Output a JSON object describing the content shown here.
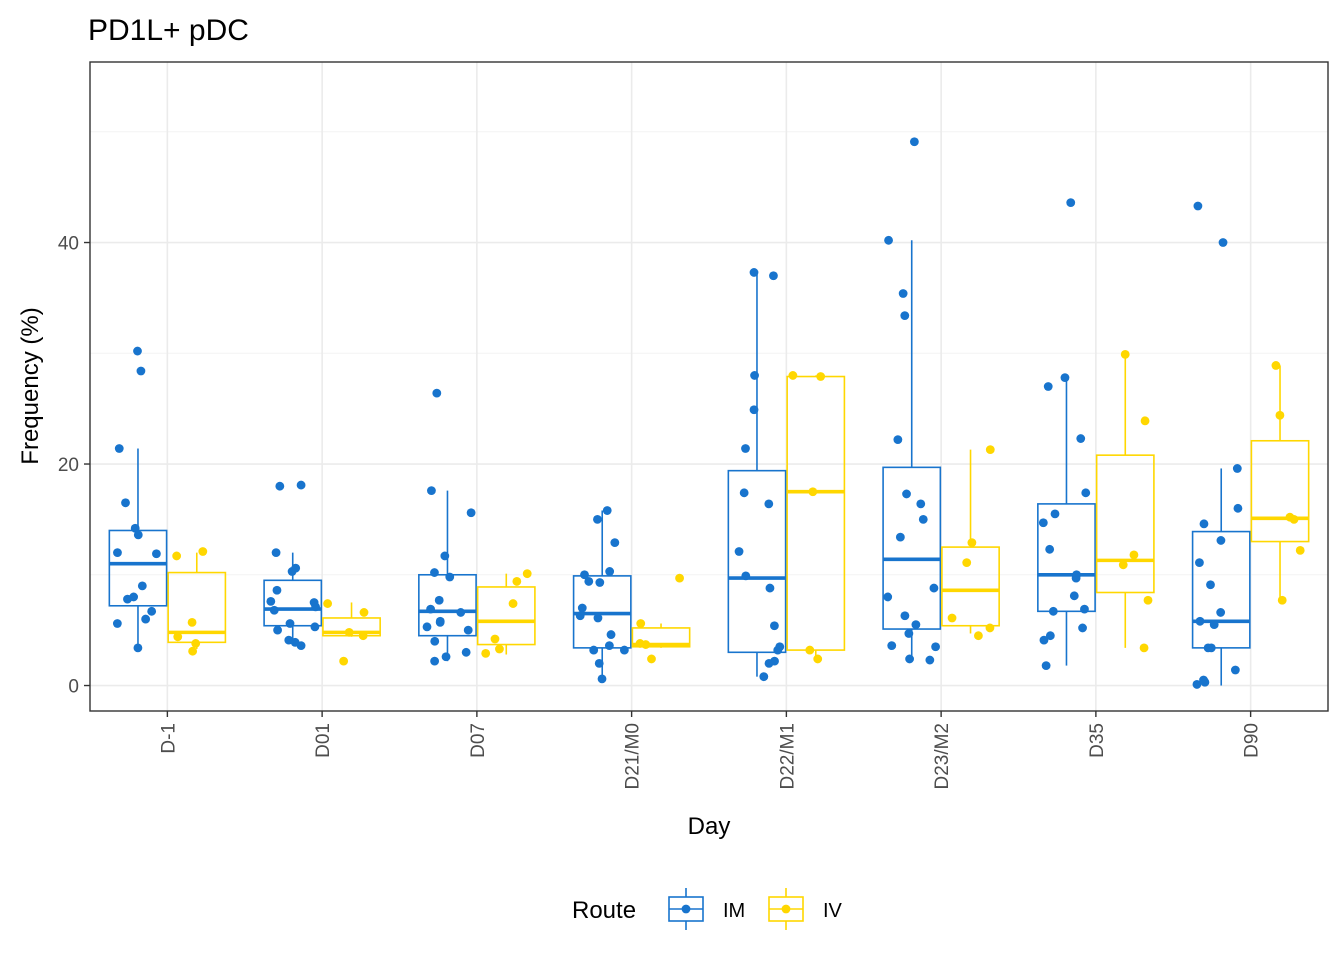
{
  "chart_data": {
    "type": "box",
    "title": "PD1L+ pDC",
    "xlabel": "Day",
    "ylabel": "Frequency (%)",
    "categories": [
      "D-1",
      "D01",
      "D07",
      "D21/M0",
      "D22/M1",
      "D23/M2",
      "D35",
      "D90"
    ],
    "yticks": [
      0,
      20,
      40
    ],
    "ylim": [
      -2.3,
      56.3
    ],
    "grid": true,
    "legend": {
      "title": "Route",
      "placement": "bottom",
      "entries": [
        "IM",
        "IV"
      ]
    },
    "series": [
      {
        "name": "IM",
        "color": "#1874CD",
        "boxes": [
          {
            "min": 3.4,
            "q1": 7.2,
            "median": 11.0,
            "q3": 14.0,
            "max": 21.4
          },
          {
            "min": 3.6,
            "q1": 5.4,
            "median": 6.9,
            "q3": 9.5,
            "max": 12.0
          },
          {
            "min": 2.2,
            "q1": 4.5,
            "median": 6.7,
            "q3": 10.0,
            "max": 17.6
          },
          {
            "min": 0.6,
            "q1": 3.4,
            "median": 6.5,
            "q3": 9.9,
            "max": 15.8
          },
          {
            "min": 0.8,
            "q1": 3.0,
            "median": 9.7,
            "q3": 19.4,
            "max": 37.3
          },
          {
            "min": 2.3,
            "q1": 5.1,
            "median": 11.4,
            "q3": 19.7,
            "max": 40.2
          },
          {
            "min": 1.8,
            "q1": 6.7,
            "median": 10.0,
            "q3": 16.4,
            "max": 27.8
          },
          {
            "min": 0.0,
            "q1": 3.4,
            "median": 5.8,
            "q3": 13.9,
            "max": 19.6
          }
        ],
        "points": [
          [
            30.2,
            28.4,
            21.4,
            16.5,
            14.2,
            13.6,
            12.0,
            11.9,
            9.0,
            8.0,
            7.8,
            6.7,
            6.0,
            5.6,
            3.4
          ],
          [
            18.0,
            18.1,
            12.0,
            10.6,
            10.3,
            8.6,
            7.6,
            7.5,
            7.1,
            6.8,
            5.6,
            5.3,
            5.0,
            4.1,
            3.9,
            3.6
          ],
          [
            26.4,
            17.6,
            15.6,
            11.7,
            10.2,
            9.8,
            7.7,
            6.9,
            6.6,
            5.8,
            5.7,
            5.3,
            5.0,
            4.0,
            3.0,
            2.6,
            2.2
          ],
          [
            15.8,
            15.0,
            12.9,
            10.3,
            10.0,
            9.4,
            9.3,
            7.0,
            6.3,
            6.1,
            4.6,
            3.6,
            3.2,
            3.2,
            2.0,
            0.6
          ],
          [
            37.3,
            37.0,
            28.0,
            24.9,
            21.4,
            17.4,
            16.4,
            12.1,
            9.9,
            8.8,
            5.4,
            3.5,
            3.2,
            2.2,
            2.0,
            0.8
          ],
          [
            49.1,
            40.2,
            35.4,
            33.4,
            22.2,
            17.3,
            16.4,
            15.0,
            13.4,
            8.8,
            8.0,
            6.3,
            5.5,
            4.7,
            3.6,
            3.5,
            2.4,
            2.3
          ],
          [
            43.6,
            27.8,
            27.0,
            22.3,
            17.4,
            15.5,
            14.7,
            12.3,
            10.0,
            9.7,
            8.1,
            6.9,
            6.7,
            5.2,
            4.5,
            4.1,
            1.8
          ],
          [
            43.3,
            40.0,
            19.6,
            16.0,
            14.6,
            13.1,
            11.1,
            9.1,
            6.6,
            5.8,
            5.5,
            3.4,
            3.4,
            1.4,
            0.5,
            0.3,
            0.1
          ]
        ]
      },
      {
        "name": "IV",
        "color": "#FFD700",
        "boxes": [
          {
            "min": 3.3,
            "q1": 3.9,
            "median": 4.8,
            "q3": 10.2,
            "max": 12.0
          },
          {
            "min": 4.4,
            "q1": 4.5,
            "median": 4.8,
            "q3": 6.1,
            "max": 7.5
          },
          {
            "min": 2.8,
            "q1": 3.7,
            "median": 5.8,
            "q3": 8.9,
            "max": 10.1
          },
          {
            "min": 3.4,
            "q1": 3.5,
            "median": 3.7,
            "q3": 5.2,
            "max": 5.6
          },
          {
            "min": 2.4,
            "q1": 3.2,
            "median": 17.5,
            "q3": 27.9,
            "max": 28.0
          },
          {
            "min": 4.7,
            "q1": 5.4,
            "median": 8.6,
            "q3": 12.5,
            "max": 21.3
          },
          {
            "min": 3.4,
            "q1": 8.4,
            "median": 11.3,
            "q3": 20.8,
            "max": 29.9
          },
          {
            "min": 7.8,
            "q1": 13.0,
            "median": 15.1,
            "q3": 22.1,
            "max": 28.9
          }
        ],
        "points": [
          [
            12.1,
            11.7,
            5.7,
            4.4,
            3.8,
            3.1
          ],
          [
            7.4,
            6.6,
            4.8,
            4.5,
            2.2
          ],
          [
            10.1,
            9.4,
            7.4,
            4.2,
            3.3,
            2.9
          ],
          [
            9.7,
            5.6,
            3.8,
            3.7,
            2.4
          ],
          [
            28.0,
            27.9,
            17.5,
            3.2,
            2.4
          ],
          [
            21.3,
            12.9,
            11.1,
            6.1,
            5.2,
            4.5
          ],
          [
            29.9,
            23.9,
            11.8,
            10.9,
            7.7,
            3.4
          ],
          [
            28.9,
            24.4,
            15.2,
            15.0,
            12.2,
            7.7
          ]
        ]
      }
    ]
  }
}
